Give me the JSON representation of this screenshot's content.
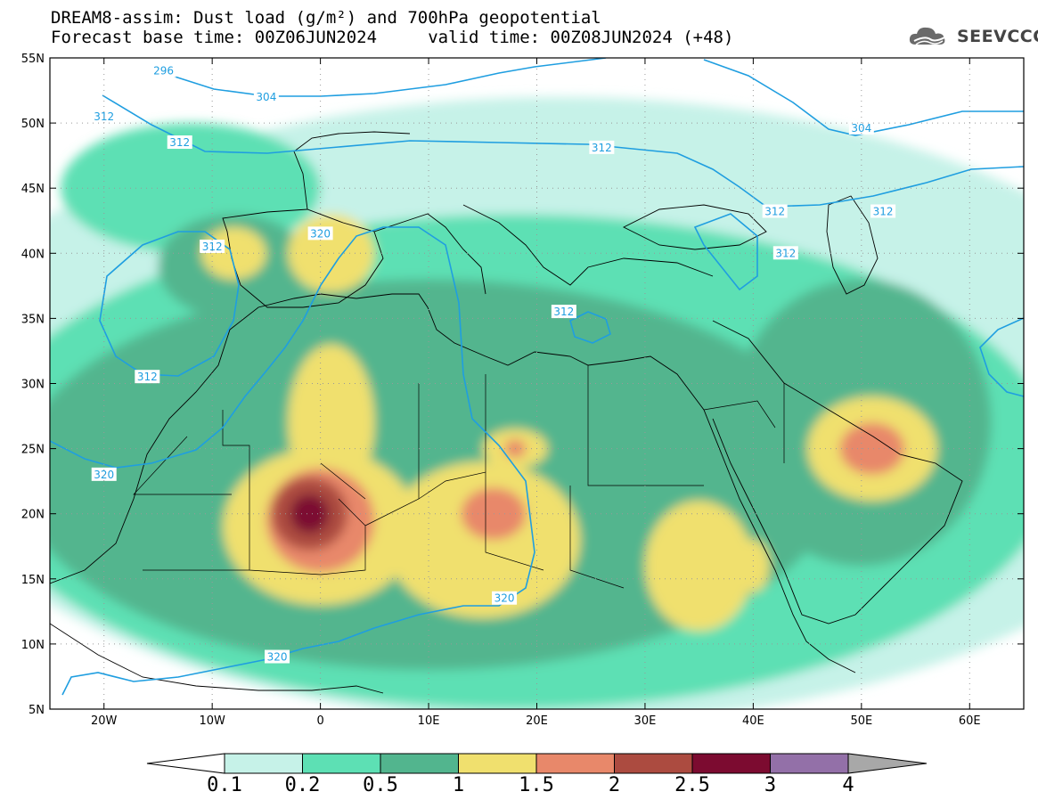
{
  "title_line1": "DREAM8-assim: Dust load (g/m²) and 700hPa geopotential",
  "title_line2": "Forecast base time: 00Z06JUN2024     valid time: 00Z08JUN2024 (+48)",
  "logo": {
    "text": "SEEVCCC",
    "icon": "cloud-icon"
  },
  "map": {
    "lon_range": [
      -25,
      65
    ],
    "lat_range": [
      5,
      55
    ],
    "lon_ticks": [
      {
        "lon": -20,
        "label": "20W"
      },
      {
        "lon": -10,
        "label": "10W"
      },
      {
        "lon": 0,
        "label": "0"
      },
      {
        "lon": 10,
        "label": "10E"
      },
      {
        "lon": 20,
        "label": "20E"
      },
      {
        "lon": 30,
        "label": "30E"
      },
      {
        "lon": 40,
        "label": "40E"
      },
      {
        "lon": 50,
        "label": "50E"
      },
      {
        "lon": 60,
        "label": "60E"
      }
    ],
    "lat_ticks": [
      {
        "lat": 55,
        "label": "55N"
      },
      {
        "lat": 50,
        "label": "50N"
      },
      {
        "lat": 45,
        "label": "45N"
      },
      {
        "lat": 40,
        "label": "40N"
      },
      {
        "lat": 35,
        "label": "35N"
      },
      {
        "lat": 30,
        "label": "30N"
      },
      {
        "lat": 25,
        "label": "25N"
      },
      {
        "lat": 20,
        "label": "20N"
      },
      {
        "lat": 15,
        "label": "15N"
      },
      {
        "lat": 10,
        "label": "10N"
      },
      {
        "lat": 5,
        "label": "5N"
      }
    ],
    "contour_labels": [
      {
        "text": "296",
        "lon": -14.5,
        "lat": 54.0
      },
      {
        "text": "304",
        "lon": -5.0,
        "lat": 52.0
      },
      {
        "text": "304",
        "lon": 50.0,
        "lat": 49.6
      },
      {
        "text": "312",
        "lon": -20.0,
        "lat": 50.5
      },
      {
        "text": "312",
        "lon": -13.0,
        "lat": 48.5
      },
      {
        "text": "312",
        "lon": 26.0,
        "lat": 48.1
      },
      {
        "text": "312",
        "lon": 42.0,
        "lat": 43.2
      },
      {
        "text": "312",
        "lon": 52.0,
        "lat": 43.2
      },
      {
        "text": "312",
        "lon": 43.0,
        "lat": 40.0
      },
      {
        "text": "312",
        "lon": 22.5,
        "lat": 35.5
      },
      {
        "text": "312",
        "lon": -16.0,
        "lat": 30.5
      },
      {
        "text": "312",
        "lon": -10.0,
        "lat": 40.5
      },
      {
        "text": "320",
        "lon": 0.0,
        "lat": 41.5
      },
      {
        "text": "320",
        "lon": -20.0,
        "lat": 23.0
      },
      {
        "text": "320",
        "lon": 17.0,
        "lat": 13.5
      },
      {
        "text": "320",
        "lon": -4.0,
        "lat": 9.0
      }
    ],
    "dust_regions": [
      {
        "level": 0.2,
        "lon": 18,
        "lat": 24,
        "rx": 50,
        "ry": 19
      },
      {
        "level": 0.2,
        "lon": -12,
        "lat": 45,
        "rx": 12,
        "ry": 5
      },
      {
        "level": 0.5,
        "lon": 10,
        "lat": 23,
        "rx": 38,
        "ry": 15
      },
      {
        "level": 0.5,
        "lon": 50,
        "lat": 27,
        "rx": 12,
        "ry": 11
      },
      {
        "level": 0.5,
        "lon": -8,
        "lat": 39,
        "rx": 7,
        "ry": 4
      },
      {
        "level": 1,
        "lon": 0,
        "lat": 19,
        "rx": 9,
        "ry": 6
      },
      {
        "level": 1,
        "lon": 1,
        "lat": 27,
        "rx": 4,
        "ry": 6
      },
      {
        "level": 1,
        "lon": 15,
        "lat": 18,
        "rx": 9,
        "ry": 6
      },
      {
        "level": 1,
        "lon": 35,
        "lat": 16,
        "rx": 5,
        "ry": 5
      },
      {
        "level": 1,
        "lon": 51,
        "lat": 25,
        "rx": 6,
        "ry": 4
      },
      {
        "level": 1,
        "lon": 1,
        "lat": 40,
        "rx": 4,
        "ry": 3
      },
      {
        "level": 1,
        "lon": -8,
        "lat": 40,
        "rx": 3,
        "ry": 2
      },
      {
        "level": 1,
        "lon": 18,
        "lat": 25,
        "rx": 3,
        "ry": 1.5
      },
      {
        "level": 1,
        "lon": 40,
        "lat": 16,
        "rx": 1.5,
        "ry": 2
      },
      {
        "level": 1.5,
        "lon": 0,
        "lat": 19.5,
        "rx": 5,
        "ry": 4
      },
      {
        "level": 1.5,
        "lon": 16,
        "lat": 20,
        "rx": 3,
        "ry": 2
      },
      {
        "level": 1.5,
        "lon": 51,
        "lat": 25,
        "rx": 3,
        "ry": 2
      },
      {
        "level": 1.5,
        "lon": 18,
        "lat": 25,
        "rx": 1,
        "ry": 0.7
      },
      {
        "level": 2,
        "lon": -1,
        "lat": 20,
        "rx": 3.5,
        "ry": 2.8
      },
      {
        "level": 2.5,
        "lon": -1,
        "lat": 20,
        "rx": 1.8,
        "ry": 1.5
      }
    ]
  },
  "colorbar": {
    "labels": [
      "0.1",
      "0.2",
      "0.5",
      "1",
      "1.5",
      "2",
      "2.5",
      "3",
      "4"
    ],
    "colors": [
      "#c6f2e8",
      "#5de0b4",
      "#52b58e",
      "#f0e06e",
      "#e8886a",
      "#ac4b40",
      "#7c0b30",
      "#9370a8"
    ],
    "under_color": "#ffffff",
    "over_color": "#a8a8a8"
  }
}
